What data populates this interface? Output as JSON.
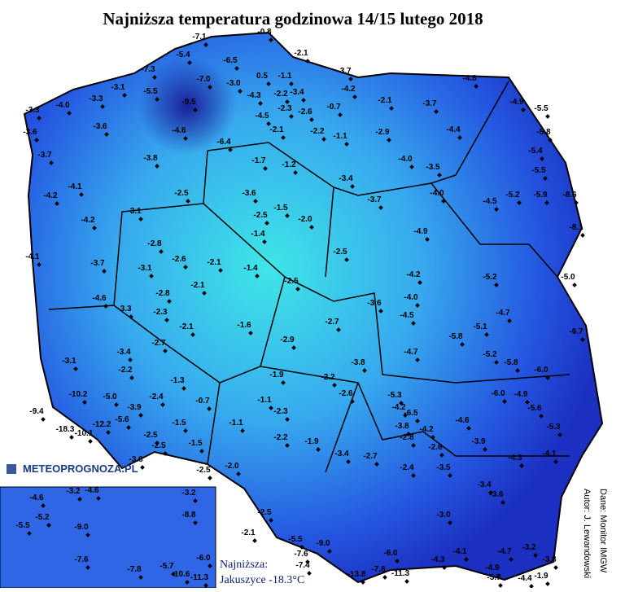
{
  "title": "Najniższa temperatura godzinowa 14/15 lutego 2018",
  "stations": [
    "-7.1",
    "-0.8",
    "-5.4",
    "-6.5",
    "-2.1",
    "-7.3",
    "-7.0",
    "-3.0",
    "0.5",
    "-1.1",
    "-3.7",
    "-3.1",
    "-5.5",
    "-9.5",
    "-4.3",
    "-2.2",
    "-3.4",
    "-4.2",
    "-4.8",
    "-3.3",
    "-4.0",
    "-3.3",
    "-2.3",
    "-0.7",
    "-2.1",
    "-3.7",
    "-4.9",
    "-5.5",
    "-4.5",
    "-2.6",
    "-3.6",
    "-3.6",
    "-4.6",
    "-2.1",
    "-2.2",
    "-1.1",
    "-2.9",
    "-4.4",
    "-5.8",
    "-6.4",
    "-3.7",
    "-3.8",
    "-1.7",
    "-1.2",
    "-4.0",
    "-3.5",
    "-5.4",
    "-5.5",
    "-4.1",
    "-3.4",
    "-4.2",
    "-2.5",
    "-3.6",
    "-1.5",
    "-3.7",
    "-4.0",
    "-5.2",
    "-5.9",
    "-8.6",
    "-4.5",
    "-4.2",
    "-3.1",
    "-2.5",
    "-2.0",
    "-8.1",
    "-1.4",
    "-4.9",
    "-4.1",
    "-2.8",
    "-2.5",
    "-3.7",
    "-3.1",
    "-2.6",
    "-2.1",
    "-1.4",
    "-4.2",
    "-5.2",
    "-5.0",
    "-2.8",
    "-2.1",
    "-2.5",
    "-4.0",
    "-4.6",
    "-3.3",
    "-2.3",
    "-3.6",
    "-4.5",
    "-4.7",
    "-2.1",
    "-1.6",
    "-2.7",
    "-5.1",
    "-6.7",
    "-5.8",
    "-2.7",
    "-2.9",
    "-3.4",
    "-4.7",
    "-5.2",
    "-5.8",
    "-3.1",
    "-3.8",
    "-6.0",
    "-2.2",
    "-1.9",
    "-2.2",
    "-1.3",
    "-2.6",
    "-10.2",
    "-5.0",
    "-2.4",
    "-0.7",
    "-1.1",
    "-6.0",
    "-4.9",
    "-5.3",
    "-5.6",
    "-9.4",
    "-3.9",
    "-2.3",
    "-4.2",
    "-6.5",
    "-5.6",
    "-12.2",
    "-1.5",
    "-1.1",
    "-4.6",
    "-5.3",
    "-18.3",
    "-10.1",
    "-3.8",
    "-4.2",
    "-2.5",
    "-2.2",
    "-1.9",
    "-2.8",
    "-2.5",
    "-1.5",
    "-3.9",
    "-2.6",
    "-3.4",
    "-2.7",
    "-4.1",
    "-4.3",
    "-3.6",
    "-2.0",
    "-2.5",
    "-3.5",
    "-2.4",
    "-2.5",
    "-2.1",
    "-5.5",
    "-9.0",
    "-7.6",
    "-7.4",
    "-13.8",
    "-7.8",
    "-11.3",
    "-4.3",
    "-6.0",
    "-4.9",
    "-5.7",
    "-4.4",
    "-1.9",
    "-3.8",
    "-3.2",
    "-4.7",
    "-4.1",
    "-3.0",
    "-3.6",
    "-3.4"
  ],
  "inset": [
    "-4.6",
    "-3.2",
    "-4.6",
    "-3.2",
    "-5.2",
    "-8.8",
    "-9.0",
    "-5.5",
    "-7.6",
    "-5.7",
    "-6.0",
    "-10.6",
    "-11.3",
    "-7.8"
  ],
  "logo": "METEOPROGNOZA.PL",
  "minimum": {
    "label": "Najniższa:",
    "place": "Jakuszyce -18.3°C"
  },
  "author": "Autor: J. Lewandowski",
  "source": "Dane: Monitor IMGW"
}
